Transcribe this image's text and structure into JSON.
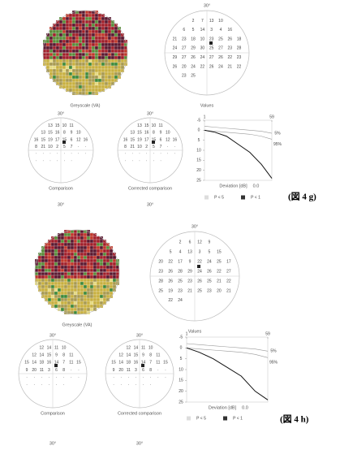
{
  "panels": [
    {
      "tag": "(図 4 g)",
      "degree_label": "30°",
      "greyscale_label": "Greyscale (VA)",
      "values_label": "Values",
      "values": [
        2,
        7,
        13,
        10,
        6,
        5,
        14,
        3,
        4,
        16,
        21,
        23,
        18,
        10,
        23,
        25,
        26,
        18,
        24,
        27,
        29,
        30,
        25,
        27,
        23,
        28,
        29,
        27,
        26,
        24,
        27,
        26,
        22,
        23,
        26,
        20,
        24,
        22,
        26,
        24,
        21,
        22,
        23,
        25
      ],
      "comparison_label": "Comparison",
      "comparison": [
        "13",
        "15",
        "10",
        "11",
        "13",
        "15",
        "16",
        "8",
        "9",
        "10",
        "16",
        "15",
        "19",
        "17",
        "15",
        "6",
        "12",
        "16",
        "8",
        "21",
        "10",
        "2",
        "5",
        "7",
        "·",
        "·",
        "·",
        "·",
        "·",
        "·",
        "·",
        "·",
        "·",
        "·",
        "·",
        "·",
        "·",
        "·",
        "·",
        "·"
      ],
      "corrected_label": "Corrected comparison",
      "corrected": [
        "13",
        "15",
        "10",
        "11",
        "13",
        "15",
        "16",
        "8",
        "9",
        "10",
        "16",
        "15",
        "19",
        "17",
        "15",
        "6",
        "12",
        "16",
        "8",
        "21",
        "10",
        "2",
        "5",
        "7",
        "·",
        "·",
        "·",
        "·",
        "·",
        "·",
        "·",
        "·",
        "·",
        "·",
        "·",
        "·",
        "·",
        "·",
        "·",
        "·"
      ],
      "deviation": {
        "x_label": "Deviation [dB]",
        "x_value": "0.0",
        "xlim": [
          1,
          59
        ],
        "xticks": [
          1,
          59
        ],
        "ylim": [
          -5,
          25
        ],
        "yticks": [
          -5,
          0,
          5,
          10,
          15,
          20,
          25
        ],
        "x": [
          1,
          10,
          20,
          30,
          40,
          50,
          59
        ],
        "series": [
          {
            "name": "5%",
            "color": "#999",
            "values": [
              -2,
              -1.5,
              -1,
              -0.5,
              0,
              0.5,
              1.5
            ]
          },
          {
            "name": "95%",
            "color": "#999",
            "values": [
              0,
              0.5,
              1,
              1.5,
              2,
              3,
              4.5
            ]
          },
          {
            "color": "#111",
            "values": [
              0,
              1,
              3,
              7,
              11,
              17,
              24
            ]
          }
        ]
      },
      "legend": [
        "P < 5",
        "P < 1"
      ]
    },
    {
      "tag": "(図 4 h)",
      "degree_label": "30°",
      "greyscale_label": "Greyscale (VA)",
      "values_label": "Values",
      "values": [
        2,
        6,
        12,
        9,
        5,
        4,
        13,
        3,
        5,
        15,
        20,
        22,
        17,
        9,
        22,
        24,
        25,
        17,
        23,
        26,
        28,
        29,
        24,
        26,
        22,
        27,
        28,
        26,
        25,
        23,
        26,
        25,
        21,
        22,
        25,
        19,
        23,
        21,
        25,
        23,
        20,
        21,
        22,
        24
      ],
      "comparison_label": "Comparison",
      "comparison": [
        "12",
        "14",
        "11",
        "10",
        "12",
        "14",
        "15",
        "9",
        "8",
        "11",
        "15",
        "14",
        "18",
        "16",
        "14",
        "7",
        "11",
        "15",
        "9",
        "20",
        "11",
        "3",
        "6",
        "8",
        "·",
        "·",
        "·",
        "·",
        "·",
        "·",
        "·",
        "·",
        "·",
        "·",
        "·",
        "·",
        "·",
        "·",
        "·",
        "·"
      ],
      "corrected_label": "Corrected comparison",
      "corrected": [
        "12",
        "14",
        "11",
        "10",
        "12",
        "14",
        "15",
        "9",
        "8",
        "11",
        "15",
        "14",
        "18",
        "16",
        "14",
        "7",
        "11",
        "15",
        "9",
        "20",
        "11",
        "3",
        "6",
        "8",
        "·",
        "·",
        "·",
        "·",
        "·",
        "·",
        "·",
        "·",
        "·",
        "·",
        "·",
        "·",
        "·",
        "·",
        "·",
        "·"
      ],
      "deviation": {
        "x_label": "Deviation [dB]",
        "x_value": "0.0",
        "xlim": [
          1,
          59
        ],
        "xticks": [
          1,
          59
        ],
        "ylim": [
          -5,
          25
        ],
        "yticks": [
          -5,
          0,
          5,
          10,
          15,
          20,
          25
        ],
        "x": [
          1,
          10,
          20,
          30,
          40,
          50,
          59
        ],
        "series": [
          {
            "name": "5%",
            "color": "#999",
            "values": [
              -2,
              -1.5,
              -1,
              -0.5,
              0,
              0.5,
              1.5
            ]
          },
          {
            "name": "95%",
            "color": "#999",
            "values": [
              0,
              0.5,
              1,
              1.5,
              2,
              3,
              4.5
            ]
          },
          {
            "color": "#111",
            "values": [
              0,
              2,
              5,
              9,
              13,
              20,
              24
            ]
          }
        ]
      },
      "legend": [
        "P < 5",
        "P < 1"
      ]
    }
  ]
}
